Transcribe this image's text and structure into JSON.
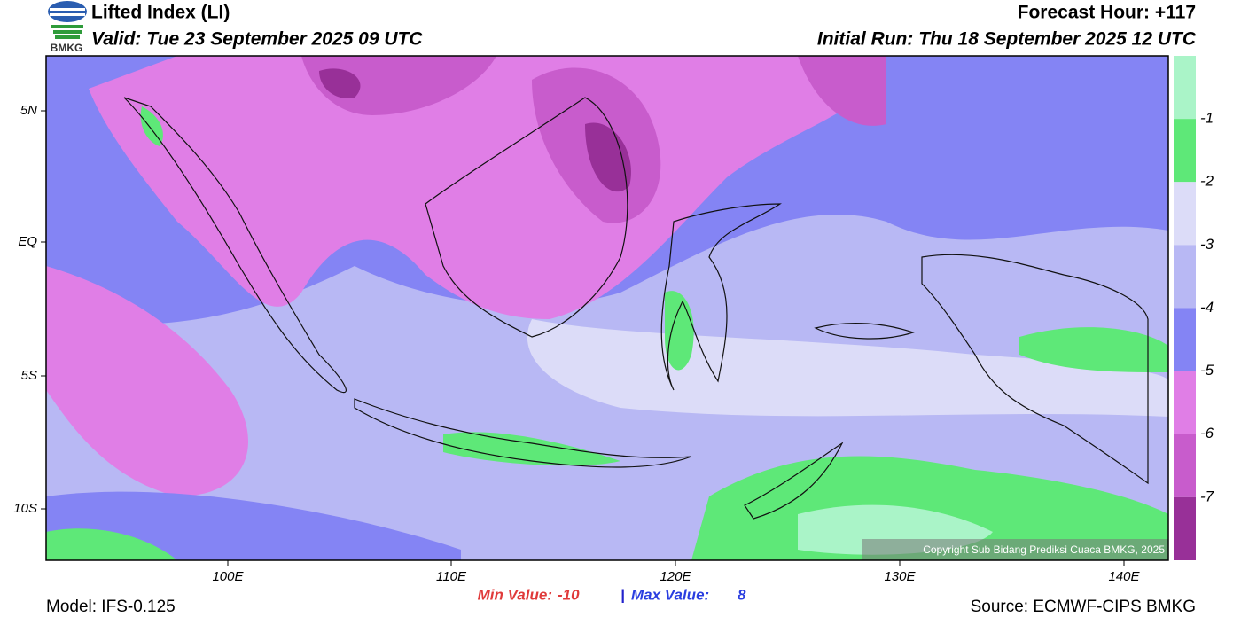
{
  "header": {
    "logo_text": "BMKG",
    "title": "Lifted Index (LI)",
    "valid": "Valid: Tue 23 September 2025 09 UTC",
    "forecast_hour": "Forecast Hour: +117",
    "initial_run": "Initial Run: Thu 18 September 2025 12 UTC"
  },
  "map": {
    "lat_labels": [
      "5N",
      "EQ",
      "5S",
      "10S"
    ],
    "lon_labels": [
      "100E",
      "110E",
      "120E",
      "130E",
      "140E"
    ],
    "copyright": "Copyright Sub Bidang Prediksi Cuaca BMKG, 2025"
  },
  "colorbar": {
    "colors": [
      "#aaf4c8",
      "#5ee878",
      "#dcdcf8",
      "#b8b8f4",
      "#8484f4",
      "#e07ee6",
      "#c85ccc",
      "#983098"
    ],
    "labels": [
      "-1",
      "-2",
      "-3",
      "-4",
      "-5",
      "-6",
      "-7"
    ]
  },
  "stats": {
    "min_label": "Min Value:",
    "min_value": "-10",
    "separator": "|",
    "max_label": "Max Value:",
    "max_value": "8"
  },
  "footer": {
    "model": "Model: IFS-0.125",
    "source": "Source: ECMWF-CIPS BMKG"
  }
}
